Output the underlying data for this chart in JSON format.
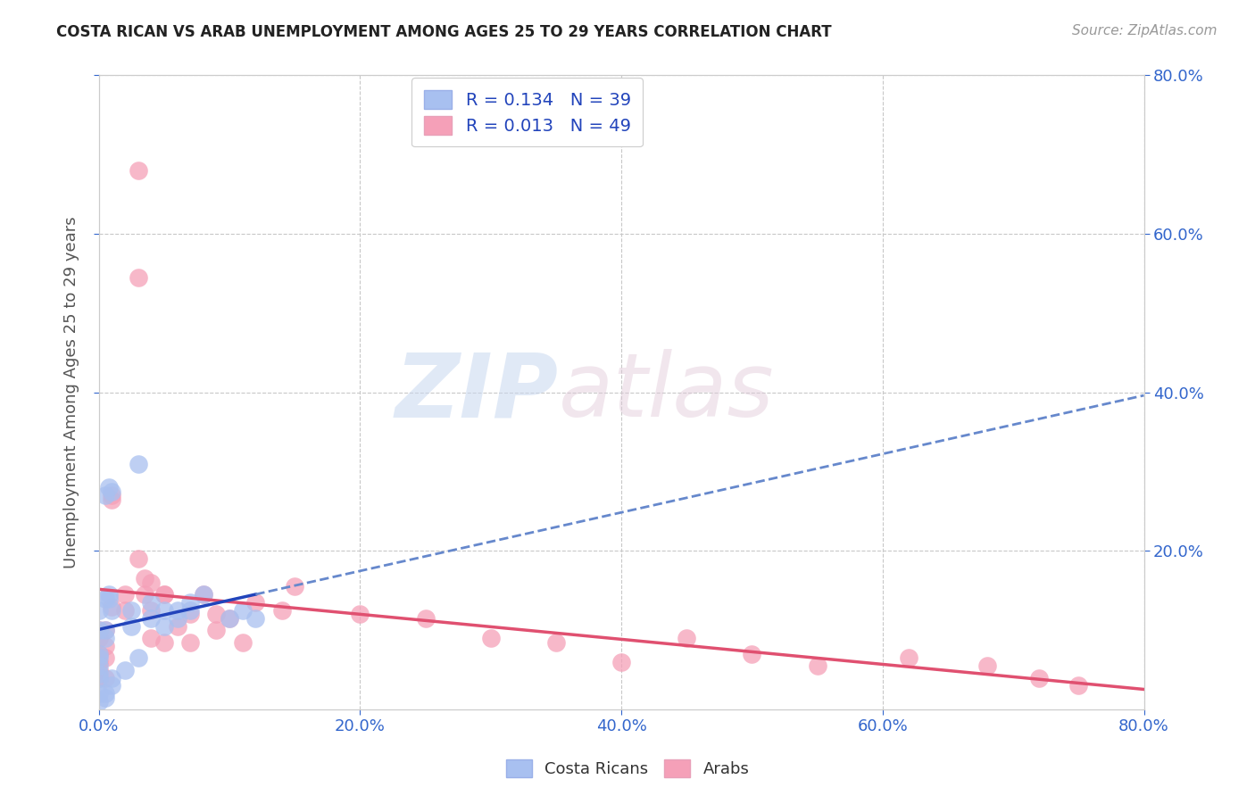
{
  "title": "COSTA RICAN VS ARAB UNEMPLOYMENT AMONG AGES 25 TO 29 YEARS CORRELATION CHART",
  "source": "Source: ZipAtlas.com",
  "ylabel": "Unemployment Among Ages 25 to 29 years",
  "xlim": [
    0.0,
    0.8
  ],
  "ylim": [
    0.0,
    0.8
  ],
  "xticks": [
    0.0,
    0.2,
    0.4,
    0.6,
    0.8
  ],
  "yticks": [
    0.2,
    0.4,
    0.6,
    0.8
  ],
  "xticklabels": [
    "0.0%",
    "20.0%",
    "40.0%",
    "60.0%",
    "80.0%"
  ],
  "right_yticklabels": [
    "20.0%",
    "40.0%",
    "60.0%",
    "80.0%"
  ],
  "background_color": "#ffffff",
  "grid_color": "#c8c8c8",
  "costa_rican_color": "#a8c0f0",
  "arab_color": "#f5a0b8",
  "costa_rican_line_solid_color": "#2244bb",
  "costa_rican_line_dash_color": "#6688cc",
  "arab_line_color": "#e05070",
  "legend_label_color": "#2244bb",
  "R_costa": 0.134,
  "N_costa": 39,
  "R_arab": 0.013,
  "N_arab": 49,
  "watermark_zip": "ZIP",
  "watermark_atlas": "atlas",
  "costa_rican_x": [
    0.005,
    0.008,
    0.01,
    0.0,
    0.0,
    0.005,
    0.01,
    0.0,
    0.0,
    0.0,
    0.0,
    0.005,
    0.0,
    0.008,
    0.008,
    0.005,
    0.03,
    0.025,
    0.025,
    0.04,
    0.04,
    0.05,
    0.05,
    0.06,
    0.06,
    0.07,
    0.0,
    0.0,
    0.005,
    0.005,
    0.01,
    0.01,
    0.02,
    0.03,
    0.1,
    0.11,
    0.12,
    0.07,
    0.08
  ],
  "costa_rican_y": [
    0.27,
    0.28,
    0.275,
    0.125,
    0.1,
    0.09,
    0.125,
    0.07,
    0.065,
    0.055,
    0.045,
    0.1,
    0.04,
    0.14,
    0.145,
    0.14,
    0.31,
    0.125,
    0.105,
    0.135,
    0.115,
    0.105,
    0.125,
    0.115,
    0.125,
    0.125,
    0.02,
    0.01,
    0.015,
    0.02,
    0.04,
    0.03,
    0.05,
    0.065,
    0.115,
    0.125,
    0.115,
    0.135,
    0.145
  ],
  "arab_x": [
    0.0,
    0.0,
    0.0,
    0.0,
    0.0,
    0.0,
    0.005,
    0.005,
    0.005,
    0.005,
    0.01,
    0.01,
    0.01,
    0.02,
    0.02,
    0.03,
    0.03,
    0.03,
    0.035,
    0.035,
    0.04,
    0.04,
    0.04,
    0.05,
    0.05,
    0.05,
    0.06,
    0.07,
    0.07,
    0.08,
    0.09,
    0.09,
    0.1,
    0.11,
    0.12,
    0.14,
    0.15,
    0.2,
    0.25,
    0.3,
    0.35,
    0.4,
    0.45,
    0.5,
    0.55,
    0.62,
    0.68,
    0.72,
    0.75
  ],
  "arab_y": [
    0.1,
    0.09,
    0.07,
    0.06,
    0.05,
    0.04,
    0.1,
    0.08,
    0.065,
    0.04,
    0.27,
    0.265,
    0.13,
    0.145,
    0.125,
    0.68,
    0.545,
    0.19,
    0.165,
    0.145,
    0.125,
    0.16,
    0.09,
    0.145,
    0.085,
    0.145,
    0.105,
    0.12,
    0.085,
    0.145,
    0.1,
    0.12,
    0.115,
    0.085,
    0.135,
    0.125,
    0.155,
    0.12,
    0.115,
    0.09,
    0.085,
    0.06,
    0.09,
    0.07,
    0.055,
    0.065,
    0.055,
    0.04,
    0.03
  ]
}
